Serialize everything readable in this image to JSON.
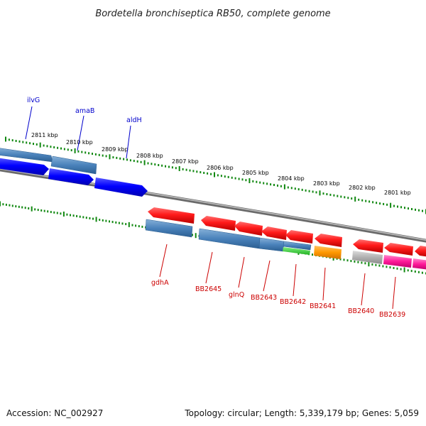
{
  "title": "Bordetella bronchiseptica RB50, complete genome",
  "footer": {
    "accession": "Accession: NC_002927",
    "summary": "Topology: circular; Length: 5,339,179 bp; Genes: 5,059"
  },
  "colors": {
    "backbone": "#8a8a8a",
    "ticks": "#118811",
    "top_label": "#0000cc",
    "bottom_label": "#cc0000"
  },
  "ruler": [
    "2811 kbp",
    "2810 kbp",
    "2809 kbp",
    "2808 kbp",
    "2807 kbp",
    "2806 kbp",
    "2805 kbp",
    "2804 kbp",
    "2803 kbp",
    "2802 kbp",
    "2801 kbp"
  ],
  "top_labels": [
    "ilvG",
    "amaB",
    "aldH"
  ],
  "bottom_labels": [
    "gdhA",
    "BB2645",
    "glnQ",
    "BB2643",
    "BB2642",
    "BB2641",
    "BB2640",
    "BB2639"
  ]
}
